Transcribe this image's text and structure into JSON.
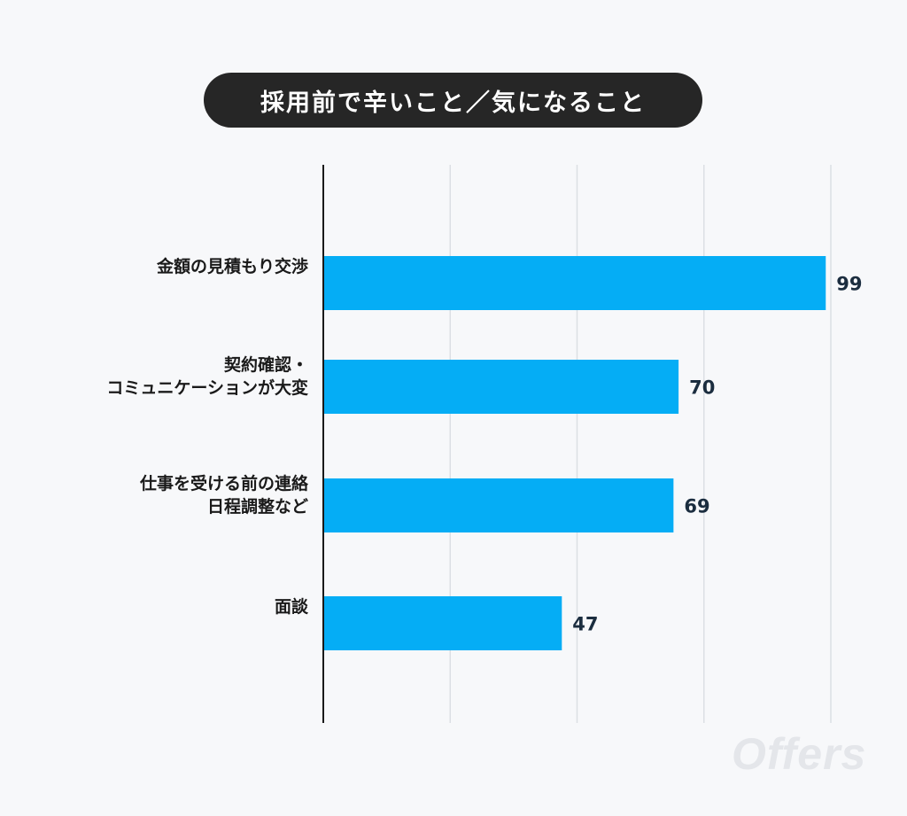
{
  "chart_data": {
    "type": "bar",
    "orientation": "horizontal",
    "title": "採用前で辛いこと／気になること",
    "categories": [
      [
        "金額の見積もり交渉"
      ],
      [
        "契約確認・",
        "コミュニケーションが大変"
      ],
      [
        "仕事を受ける前の連絡",
        "日程調整など"
      ],
      [
        "面談"
      ]
    ],
    "values": [
      99,
      70,
      69,
      47
    ],
    "xlim": [
      0,
      100
    ],
    "grid": true,
    "xlabel": "",
    "ylabel": "",
    "colors": {
      "bar": "#05adf5",
      "value_text": "#1b2d3f",
      "axis": "#1a1a1a",
      "grid": "#dcdfe4"
    }
  },
  "watermark": "Offers"
}
